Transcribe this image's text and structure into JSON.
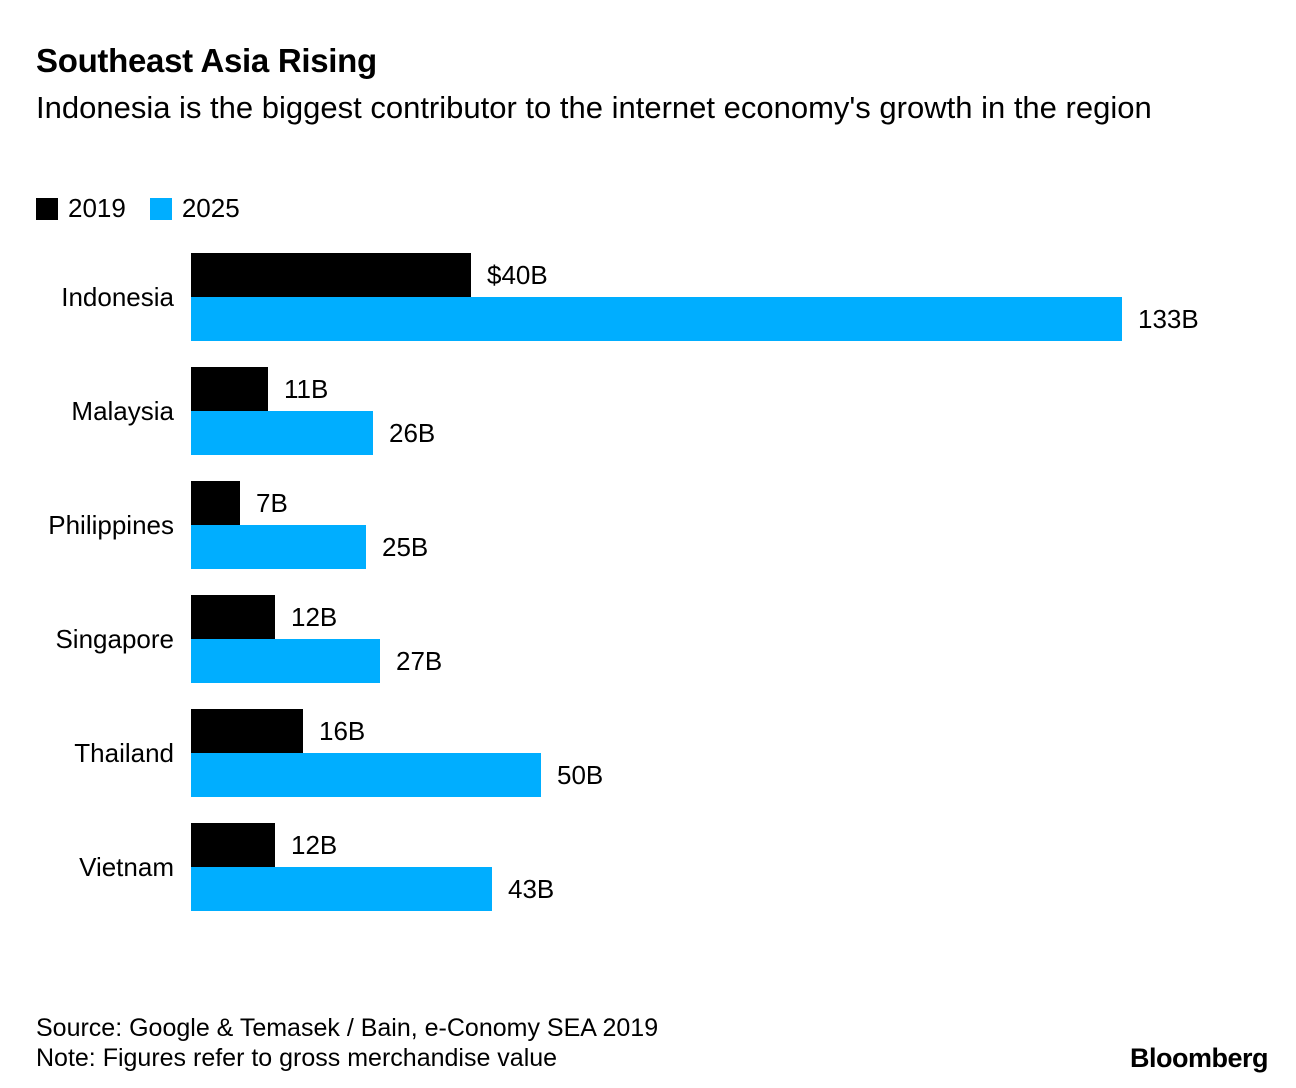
{
  "header": {
    "title": "Southeast Asia Rising",
    "subtitle": "Indonesia is the biggest contributor to the internet economy's growth in the region"
  },
  "legend": [
    {
      "label": "2019",
      "color": "#000000"
    },
    {
      "label": "2025",
      "color": "#00aeff"
    }
  ],
  "chart_data": {
    "type": "bar",
    "orientation": "horizontal",
    "title": "Southeast Asia Rising",
    "subtitle": "Indonesia is the biggest contributor to the internet economy's growth in the region",
    "xlabel": "",
    "ylabel": "",
    "unit": "USD billions (gross merchandise value)",
    "xlim": [
      0,
      140
    ],
    "grid": false,
    "legend_position": "top-left",
    "categories": [
      "Indonesia",
      "Malaysia",
      "Philippines",
      "Singapore",
      "Thailand",
      "Vietnam"
    ],
    "series": [
      {
        "name": "2019",
        "color": "#000000",
        "values": [
          40,
          11,
          7,
          12,
          16,
          12
        ],
        "labels": [
          "$40B",
          "11B",
          "7B",
          "12B",
          "16B",
          "12B"
        ]
      },
      {
        "name": "2025",
        "color": "#00aeff",
        "values": [
          133,
          26,
          25,
          27,
          50,
          43
        ],
        "labels": [
          "133B",
          "26B",
          "25B",
          "27B",
          "50B",
          "43B"
        ]
      }
    ]
  },
  "footer": {
    "source": "Source: Google & Temasek / Bain, e-Conomy SEA 2019",
    "note": "Note: Figures refer to gross merchandise value",
    "brand": "Bloomberg"
  }
}
